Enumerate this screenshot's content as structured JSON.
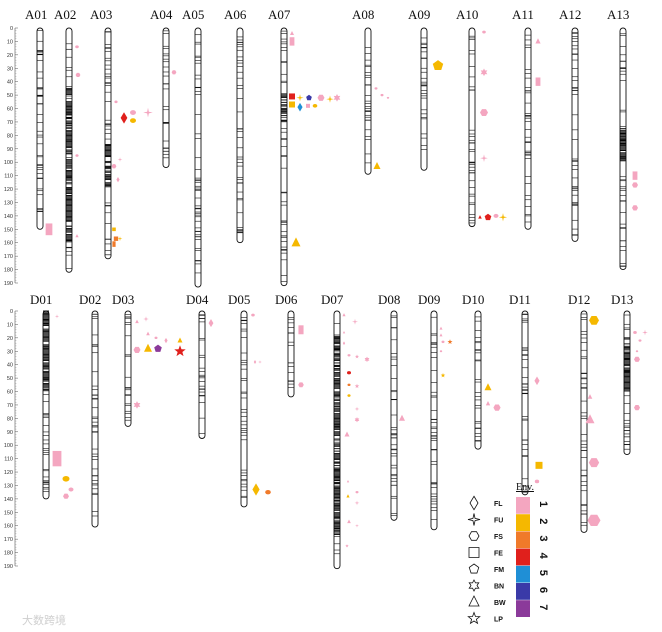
{
  "title": "",
  "row_a": {
    "labels": [
      "A01",
      "A02",
      "A03",
      "A04",
      "A05",
      "A06",
      "A07",
      "A08",
      "A09",
      "A10",
      "A11",
      "A12",
      "A13"
    ],
    "axis_ticks": [
      "0",
      "10",
      "20",
      "30",
      "40",
      "50",
      "60",
      "70",
      "80",
      "90",
      "100",
      "110",
      "120",
      "130",
      "140",
      "150",
      "160",
      "170",
      "180",
      "190"
    ]
  },
  "row_d": {
    "labels": [
      "D01",
      "D02",
      "D03",
      "D04",
      "D05",
      "D06",
      "D07",
      "D08",
      "D09",
      "D10",
      "D11",
      "D12",
      "D13"
    ],
    "axis_ticks": [
      "0",
      "10",
      "20",
      "30",
      "40",
      "50",
      "60",
      "70",
      "80",
      "90",
      "100",
      "110",
      "120",
      "130",
      "140",
      "150",
      "160",
      "170",
      "180",
      "190"
    ]
  },
  "legend": {
    "header": "Env.",
    "shapes": [
      {
        "shape": "diamond",
        "label": "FL"
      },
      {
        "shape": "star4",
        "label": "FU"
      },
      {
        "shape": "hexagon",
        "label": "FS"
      },
      {
        "shape": "square",
        "label": "FE"
      },
      {
        "shape": "pentagon",
        "label": "FM"
      },
      {
        "shape": "star6",
        "label": "BN"
      },
      {
        "shape": "triangle",
        "label": "BW"
      },
      {
        "shape": "star5",
        "label": "LP"
      }
    ],
    "envs": [
      {
        "num": "1",
        "color": "#f4a6c0"
      },
      {
        "num": "2",
        "color": "#f5b800"
      },
      {
        "num": "3",
        "color": "#f07a2a"
      },
      {
        "num": "4",
        "color": "#e0201c"
      },
      {
        "num": "5",
        "color": "#1f8fd6"
      },
      {
        "num": "6",
        "color": "#3a3aa8"
      },
      {
        "num": "7",
        "color": "#8b3a9a"
      }
    ]
  },
  "watermark": "大数跨境"
}
